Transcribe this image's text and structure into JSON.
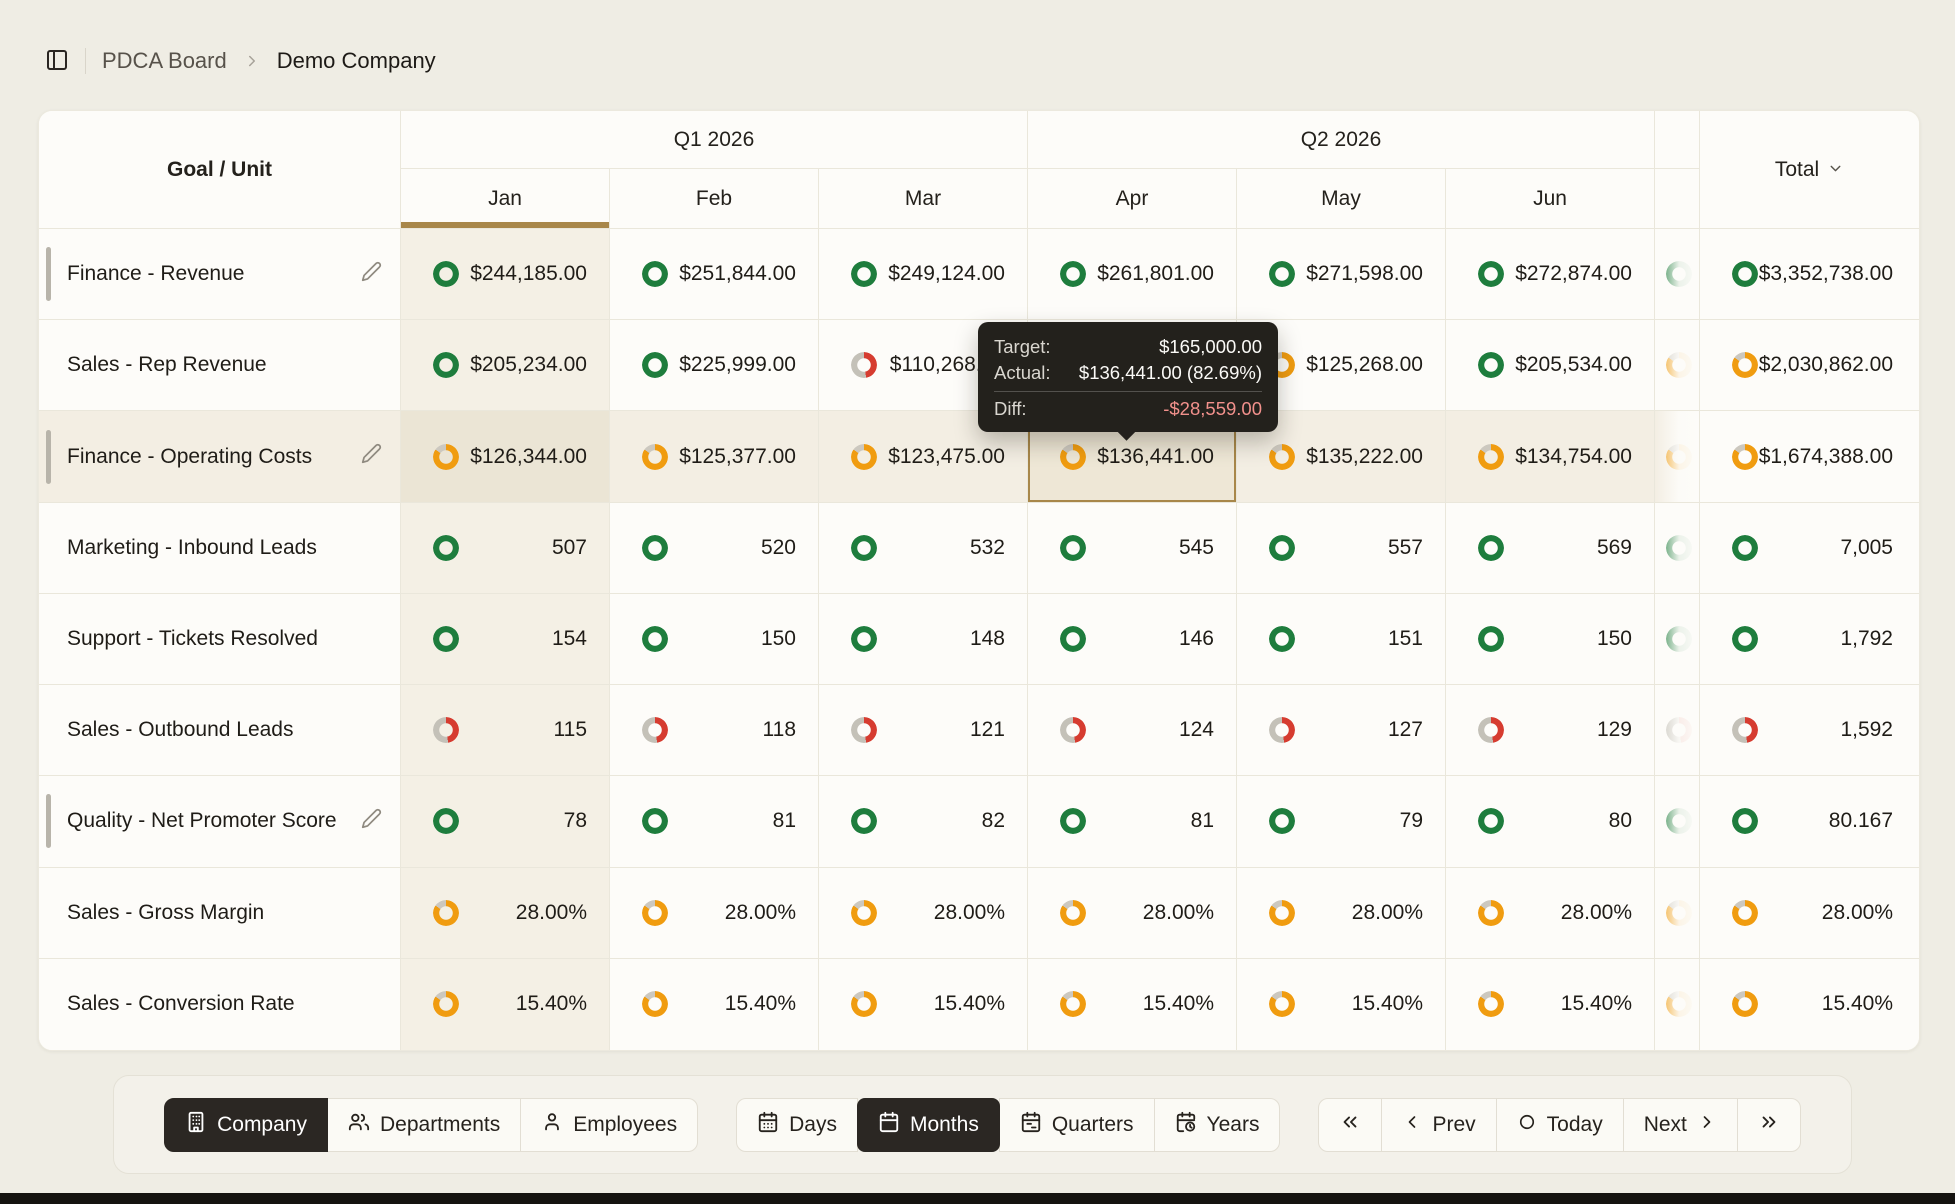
{
  "breadcrumb": {
    "section": "PDCA Board",
    "current": "Demo Company"
  },
  "table": {
    "goal_unit_header": "Goal / Unit",
    "quarter_headers": [
      "Q1 2026",
      "Q2 2026"
    ],
    "months": [
      "Jan",
      "Feb",
      "Mar",
      "Apr",
      "May",
      "Jun"
    ],
    "selected_month": "Jan",
    "total_header": "Total",
    "rows": [
      {
        "label": "Finance - Revenue",
        "handle": true,
        "editable": true,
        "highlight": false,
        "cells": [
          {
            "status": "green",
            "value": "$244,185.00"
          },
          {
            "status": "green",
            "value": "$251,844.00"
          },
          {
            "status": "green",
            "value": "$249,124.00"
          },
          {
            "status": "green",
            "value": "$261,801.00"
          },
          {
            "status": "green",
            "value": "$271,598.00"
          },
          {
            "status": "green",
            "value": "$272,874.00"
          }
        ],
        "peek_status": "green",
        "total": {
          "status": "green",
          "value": "$3,352,738.00"
        }
      },
      {
        "label": "Sales - Rep Revenue",
        "handle": false,
        "editable": false,
        "highlight": false,
        "cells": [
          {
            "status": "green",
            "value": "$205,234.00"
          },
          {
            "status": "green",
            "value": "$225,999.00"
          },
          {
            "status": "red",
            "value": "$110,268.00"
          },
          {
            "status": "none",
            "value": ""
          },
          {
            "status": "orange",
            "value": "$125,268.00"
          },
          {
            "status": "green",
            "value": "$205,534.00"
          }
        ],
        "peek_status": "orange",
        "total": {
          "status": "orange",
          "value": "$2,030,862.00"
        }
      },
      {
        "label": "Finance - Operating Costs",
        "handle": true,
        "editable": true,
        "highlight": true,
        "cells": [
          {
            "status": "orange",
            "value": "$126,344.00"
          },
          {
            "status": "orange",
            "value": "$125,377.00"
          },
          {
            "status": "orange",
            "value": "$123,475.00"
          },
          {
            "status": "orange",
            "value": "$136,441.00",
            "selected": true
          },
          {
            "status": "orange",
            "value": "$135,222.00"
          },
          {
            "status": "orange",
            "value": "$134,754.00"
          }
        ],
        "peek_status": "orange",
        "total": {
          "status": "orange",
          "value": "$1,674,388.00"
        }
      },
      {
        "label": "Marketing - Inbound Leads",
        "handle": false,
        "editable": false,
        "highlight": false,
        "cells": [
          {
            "status": "green",
            "value": "507"
          },
          {
            "status": "green",
            "value": "520"
          },
          {
            "status": "green",
            "value": "532"
          },
          {
            "status": "green",
            "value": "545"
          },
          {
            "status": "green",
            "value": "557"
          },
          {
            "status": "green",
            "value": "569"
          }
        ],
        "peek_status": "green",
        "total": {
          "status": "green",
          "value": "7,005"
        }
      },
      {
        "label": "Support - Tickets Resolved",
        "handle": false,
        "editable": false,
        "highlight": false,
        "cells": [
          {
            "status": "green",
            "value": "154"
          },
          {
            "status": "green",
            "value": "150"
          },
          {
            "status": "green",
            "value": "148"
          },
          {
            "status": "green",
            "value": "146"
          },
          {
            "status": "green",
            "value": "151"
          },
          {
            "status": "green",
            "value": "150"
          }
        ],
        "peek_status": "green",
        "total": {
          "status": "green",
          "value": "1,792"
        }
      },
      {
        "label": "Sales - Outbound Leads",
        "handle": false,
        "editable": false,
        "highlight": false,
        "cells": [
          {
            "status": "red",
            "value": "115"
          },
          {
            "status": "red",
            "value": "118"
          },
          {
            "status": "red",
            "value": "121"
          },
          {
            "status": "red",
            "value": "124"
          },
          {
            "status": "red",
            "value": "127"
          },
          {
            "status": "red",
            "value": "129"
          }
        ],
        "peek_status": "red",
        "total": {
          "status": "red",
          "value": "1,592"
        }
      },
      {
        "label": "Quality - Net Promoter Score",
        "handle": true,
        "editable": true,
        "highlight": false,
        "cells": [
          {
            "status": "green",
            "value": "78"
          },
          {
            "status": "green",
            "value": "81"
          },
          {
            "status": "green",
            "value": "82"
          },
          {
            "status": "green",
            "value": "81"
          },
          {
            "status": "green",
            "value": "79"
          },
          {
            "status": "green",
            "value": "80"
          }
        ],
        "peek_status": "green",
        "total": {
          "status": "green",
          "value": "80.167"
        }
      },
      {
        "label": "Sales - Gross Margin",
        "handle": false,
        "editable": false,
        "highlight": false,
        "cells": [
          {
            "status": "orange",
            "value": "28.00%"
          },
          {
            "status": "orange",
            "value": "28.00%"
          },
          {
            "status": "orange",
            "value": "28.00%"
          },
          {
            "status": "orange",
            "value": "28.00%"
          },
          {
            "status": "orange",
            "value": "28.00%"
          },
          {
            "status": "orange",
            "value": "28.00%"
          }
        ],
        "peek_status": "orange",
        "total": {
          "status": "orange",
          "value": "28.00%"
        }
      },
      {
        "label": "Sales - Conversion Rate",
        "handle": false,
        "editable": false,
        "highlight": false,
        "cells": [
          {
            "status": "orange",
            "value": "15.40%"
          },
          {
            "status": "orange",
            "value": "15.40%"
          },
          {
            "status": "orange",
            "value": "15.40%"
          },
          {
            "status": "orange",
            "value": "15.40%"
          },
          {
            "status": "orange",
            "value": "15.40%"
          },
          {
            "status": "orange",
            "value": "15.40%"
          }
        ],
        "peek_status": "orange",
        "total": {
          "status": "orange",
          "value": "15.40%"
        }
      }
    ]
  },
  "tooltip": {
    "target_label": "Target:",
    "target_value": "$165,000.00",
    "actual_label": "Actual:",
    "actual_value": "$136,441.00 (82.69%)",
    "diff_label": "Diff:",
    "diff_value": "-$28,559.00"
  },
  "toolbar": {
    "scope_options": [
      {
        "label": "Company",
        "active": true
      },
      {
        "label": "Departments",
        "active": false
      },
      {
        "label": "Employees",
        "active": false
      }
    ],
    "period_options": [
      {
        "label": "Days",
        "active": false
      },
      {
        "label": "Months",
        "active": true
      },
      {
        "label": "Quarters",
        "active": false
      },
      {
        "label": "Years",
        "active": false
      }
    ],
    "nav": {
      "prev_label": "Prev",
      "today_label": "Today",
      "next_label": "Next"
    }
  },
  "colors": {
    "accent_gold": "#a8874a",
    "status_green": "#1e7d3d",
    "status_orange": "#f09c10",
    "status_red": "#d63c30",
    "status_gray": "#c4c1b8",
    "tooltip_bg": "#23211c",
    "tooltip_diff": "#f2918c",
    "active_button_bg": "#2b2723",
    "highlight_row": "#f3eee3",
    "highlight_column": "#f4f0e5"
  }
}
